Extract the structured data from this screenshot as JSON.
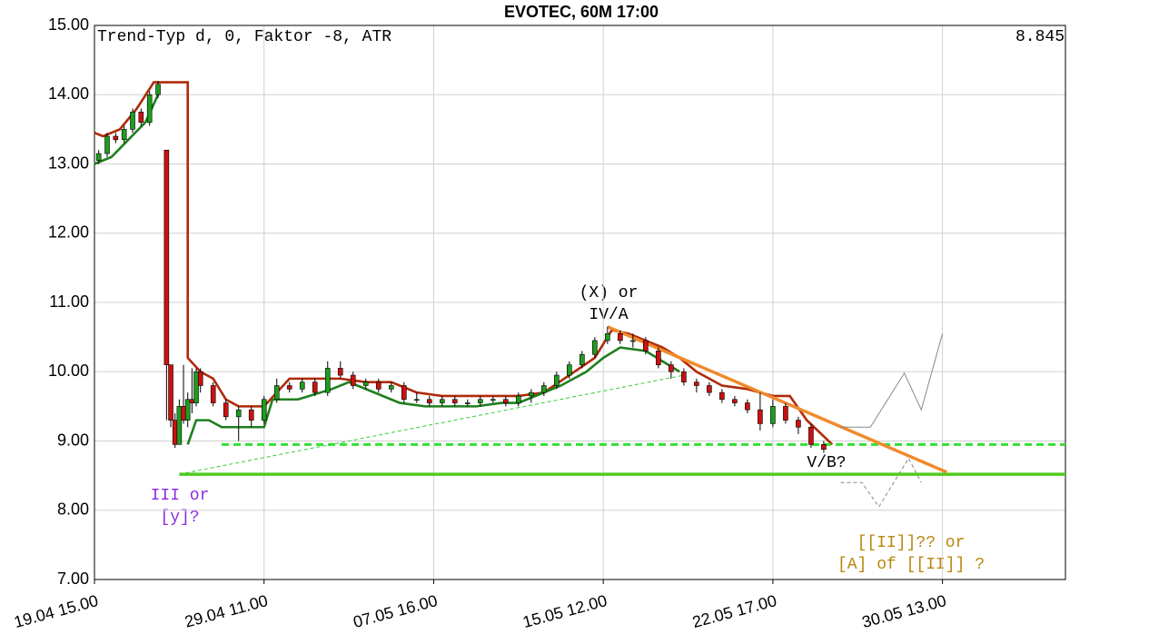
{
  "chart_data": {
    "type": "candlestick",
    "title": "EVOTEC, 60M 17:00",
    "info_left": "Trend-Typ d, 0, Faktor -8, ATR",
    "info_right": "8.845",
    "xlim": [
      0,
      229
    ],
    "ylim": [
      7,
      15
    ],
    "xticks": [
      {
        "value": 0,
        "label": "19.04 15.00"
      },
      {
        "value": 40,
        "label": "29.04 11.00"
      },
      {
        "value": 80,
        "label": "07.05 16.00"
      },
      {
        "value": 120,
        "label": "15.05 12.00"
      },
      {
        "value": 160,
        "label": "22.05 17.00"
      },
      {
        "value": 200,
        "label": "30.05 13.00"
      }
    ],
    "yticks": [
      {
        "value": 7,
        "label": "7.00"
      },
      {
        "value": 8,
        "label": "8.00"
      },
      {
        "value": 9,
        "label": "9.00"
      },
      {
        "value": 10,
        "label": "10.00"
      },
      {
        "value": 11,
        "label": "11.00"
      },
      {
        "value": 12,
        "label": "12.00"
      },
      {
        "value": 13,
        "label": "13.00"
      },
      {
        "value": 14,
        "label": "14.00"
      },
      {
        "value": 15,
        "label": "15.00"
      }
    ],
    "grid": true,
    "up_color": "#1f9c1f",
    "down_color": "#cc1010",
    "x": [
      1,
      3,
      5,
      7,
      9,
      11,
      13,
      15,
      17,
      18,
      19,
      20,
      21,
      22,
      23,
      24,
      25,
      28,
      31,
      34,
      37,
      40,
      43,
      46,
      49,
      52,
      55,
      58,
      61,
      64,
      67,
      70,
      73,
      76,
      79,
      82,
      85,
      88,
      91,
      94,
      97,
      100,
      103,
      106,
      109,
      112,
      115,
      118,
      121,
      124,
      127,
      130,
      133,
      136,
      139,
      142,
      145,
      148,
      151,
      154,
      157,
      160,
      163,
      166,
      169,
      172
    ],
    "open": [
      13.05,
      13.15,
      13.4,
      13.35,
      13.5,
      13.75,
      13.6,
      14.0,
      13.2,
      10.1,
      9.3,
      8.95,
      9.5,
      9.3,
      9.6,
      9.55,
      10.0,
      9.8,
      9.55,
      9.35,
      9.45,
      9.3,
      9.6,
      9.8,
      9.75,
      9.85,
      9.7,
      10.05,
      9.95,
      9.8,
      9.85,
      9.75,
      9.8,
      9.6,
      9.6,
      9.55,
      9.6,
      9.55,
      9.55,
      9.6,
      9.6,
      9.55,
      9.65,
      9.7,
      9.8,
      9.95,
      10.1,
      10.25,
      10.45,
      10.55,
      10.45,
      10.45,
      10.3,
      10.1,
      10.0,
      9.85,
      9.8,
      9.7,
      9.6,
      9.55,
      9.45,
      9.25,
      9.5,
      9.3,
      9.2,
      8.95
    ],
    "high": [
      13.2,
      13.45,
      13.45,
      13.55,
      13.8,
      13.8,
      14.05,
      14.2,
      13.2,
      10.1,
      9.4,
      9.6,
      10.1,
      9.7,
      10.05,
      10.05,
      10.05,
      9.85,
      9.6,
      9.5,
      9.5,
      9.65,
      9.9,
      9.85,
      9.9,
      9.9,
      10.15,
      10.15,
      10.0,
      9.9,
      9.9,
      9.85,
      9.85,
      9.7,
      9.65,
      9.65,
      9.65,
      9.6,
      9.65,
      9.65,
      9.65,
      9.7,
      9.75,
      9.85,
      10.0,
      10.15,
      10.3,
      10.5,
      10.65,
      10.6,
      10.55,
      10.5,
      10.35,
      10.15,
      10.05,
      9.9,
      9.85,
      9.75,
      9.65,
      9.6,
      9.7,
      9.6,
      9.55,
      9.35,
      9.25,
      9.0
    ],
    "low": [
      13.0,
      13.1,
      13.3,
      13.3,
      13.45,
      13.55,
      13.55,
      13.95,
      9.3,
      9.2,
      8.9,
      8.95,
      9.25,
      9.2,
      9.4,
      9.5,
      9.7,
      9.5,
      9.3,
      9.0,
      9.2,
      9.25,
      9.55,
      9.7,
      9.7,
      9.65,
      9.65,
      9.9,
      9.75,
      9.75,
      9.7,
      9.7,
      9.55,
      9.55,
      9.5,
      9.5,
      9.5,
      9.5,
      9.5,
      9.55,
      9.5,
      9.5,
      9.55,
      9.65,
      9.75,
      9.9,
      10.05,
      10.2,
      10.4,
      10.4,
      10.35,
      10.25,
      10.05,
      9.9,
      9.8,
      9.7,
      9.65,
      9.55,
      9.5,
      9.4,
      9.15,
      9.2,
      9.25,
      9.1,
      8.9,
      8.83
    ],
    "close": [
      13.15,
      13.4,
      13.35,
      13.5,
      13.75,
      13.6,
      14.0,
      14.15,
      10.1,
      9.3,
      8.95,
      9.5,
      9.3,
      9.6,
      9.55,
      10.0,
      9.8,
      9.55,
      9.35,
      9.45,
      9.3,
      9.6,
      9.8,
      9.75,
      9.85,
      9.7,
      10.05,
      9.95,
      9.8,
      9.85,
      9.75,
      9.8,
      9.6,
      9.6,
      9.55,
      9.6,
      9.55,
      9.55,
      9.6,
      9.6,
      9.55,
      9.65,
      9.7,
      9.8,
      9.95,
      10.1,
      10.25,
      10.45,
      10.55,
      10.45,
      10.45,
      10.3,
      10.1,
      10.0,
      9.85,
      9.8,
      9.7,
      9.6,
      9.55,
      9.45,
      9.25,
      9.5,
      9.3,
      9.2,
      8.95,
      8.88
    ],
    "lines": [
      {
        "color": "#b02a08",
        "style": "solid",
        "x": [
          0,
          2,
          6,
          10,
          14,
          16,
          22,
          22,
          25,
          28,
          31,
          34,
          40,
          46,
          52,
          58,
          64,
          70,
          76,
          82,
          88,
          94,
          100,
          106,
          112,
          118,
          122,
          126,
          130,
          134,
          138,
          142,
          148,
          154,
          160,
          164,
          168,
          174
        ],
        "values": [
          13.45,
          13.4,
          13.5,
          13.8,
          14.18,
          14.18,
          14.18,
          10.2,
          10.0,
          9.9,
          9.6,
          9.5,
          9.5,
          9.9,
          9.9,
          9.9,
          9.85,
          9.85,
          9.7,
          9.65,
          9.65,
          9.65,
          9.65,
          9.7,
          9.95,
          10.2,
          10.6,
          10.55,
          10.45,
          10.35,
          10.2,
          10.0,
          9.8,
          9.75,
          9.65,
          9.65,
          9.3,
          8.95
        ]
      },
      {
        "color": "#1f7f1f",
        "style": "solid",
        "x": [
          0,
          4,
          8,
          12,
          15,
          16,
          22,
          24,
          27,
          30,
          33,
          40,
          42,
          48,
          56,
          60,
          66,
          72,
          78,
          84,
          90,
          96,
          100,
          106,
          110,
          116,
          120,
          124,
          130,
          138
        ],
        "values": [
          13.0,
          13.1,
          13.35,
          13.6,
          14.0,
          null,
          8.95,
          9.3,
          9.3,
          9.2,
          9.2,
          9.2,
          9.6,
          9.6,
          9.75,
          9.85,
          9.7,
          9.55,
          9.5,
          9.5,
          9.5,
          9.55,
          9.55,
          9.7,
          9.8,
          10.0,
          10.2,
          10.35,
          10.3,
          10.0
        ]
      },
      {
        "color": "#4fcc1f",
        "style": "thick",
        "x": [
          20,
          229
        ],
        "values": [
          8.52,
          8.52
        ]
      },
      {
        "color": "#33e033",
        "style": "dashed",
        "x": [
          30,
          229
        ],
        "values": [
          8.95,
          8.95
        ]
      },
      {
        "color": "#33cc33",
        "style": "thin-dashed",
        "x": [
          20,
          139
        ],
        "values": [
          8.52,
          9.95
        ]
      },
      {
        "color": "#f08a2c",
        "style": "thick",
        "x": [
          121,
          201
        ],
        "values": [
          10.65,
          8.55
        ]
      },
      {
        "color": "#888888",
        "style": "thin",
        "x": [
          176,
          183,
          191,
          195,
          200
        ],
        "values": [
          9.2,
          9.2,
          9.98,
          9.45,
          10.55
        ]
      },
      {
        "color": "#888888",
        "style": "thin-dashed",
        "x": [
          176,
          181,
          185,
          192,
          195
        ],
        "values": [
          8.4,
          8.4,
          8.05,
          8.75,
          8.4
        ]
      }
    ],
    "annotations": [
      "(X) or",
      "IV/A",
      "V/B?",
      "III or",
      "[y]?",
      "[[II]]?? or",
      "[A] of [[II]] ?"
    ]
  }
}
